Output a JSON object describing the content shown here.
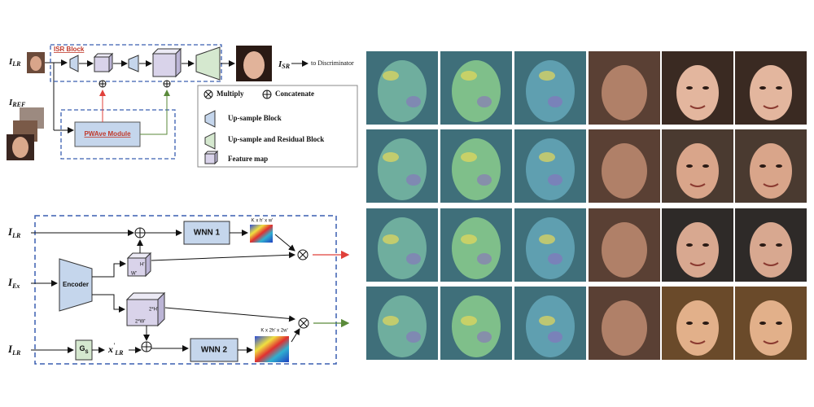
{
  "top_diagram": {
    "isr_block": "ISR Block",
    "input_lr": {
      "main": "I",
      "sub": "LR"
    },
    "output_sr": {
      "main": "I",
      "sub": "SR"
    },
    "to_discriminator": "to Discriminator",
    "input_ref": {
      "main": "I",
      "sub": "REF"
    },
    "pwave_module": "PWAve Module",
    "legend": [
      "Multiply",
      "Concatenate",
      "Up-sample Block",
      "Up-sample and Residual  Block",
      "Feature map"
    ]
  },
  "bottom_diagram": {
    "input_lr_1": {
      "main": "I",
      "sub": "LR"
    },
    "input_ex": {
      "main": "I",
      "sub": "Ex"
    },
    "input_lr_2": {
      "main": "I",
      "sub": "LR"
    },
    "encoder": "Encoder",
    "wnn1": "WNN 1",
    "wnn1_size": "K x h' x w'",
    "feat1_h": "H'",
    "feat1_w": "W'",
    "feat2_h": "2*H'",
    "feat2_w": "2*W'",
    "gs": {
      "main": "G",
      "sub": "S"
    },
    "x_lr": {
      "main": "x",
      "sup": "'",
      "sub": "LR"
    },
    "wnn2": "WNN 2",
    "wnn2_size": "K x 2h' x 2w'"
  }
}
